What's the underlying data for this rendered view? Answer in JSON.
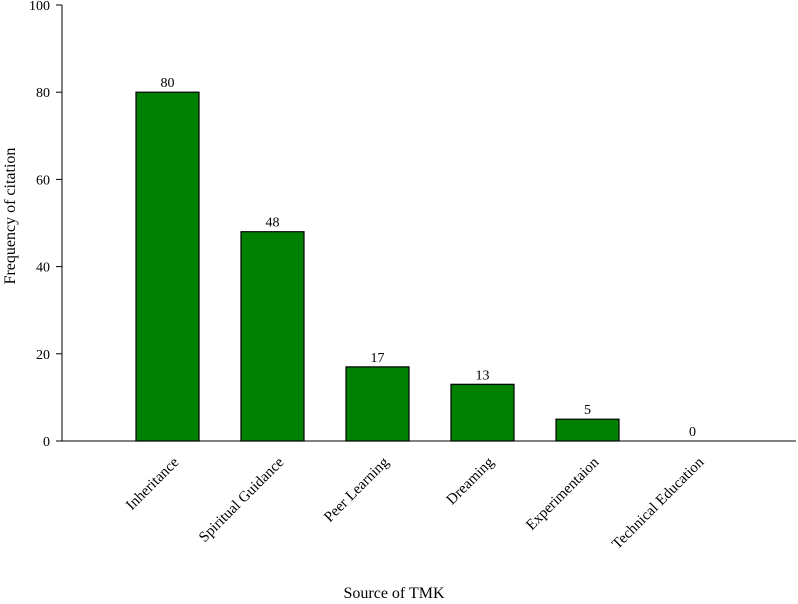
{
  "chart_data": {
    "type": "bar",
    "categories": [
      "Inheritance",
      "Spiritual Guidance",
      "Peer Learning",
      "Dreaming",
      "Experimentaion",
      "Technical Education"
    ],
    "values": [
      80,
      48,
      17,
      13,
      5,
      0
    ],
    "data_labels": [
      "80",
      "48",
      "17",
      "13",
      "5",
      "0"
    ],
    "xlabel": "Source of TMK",
    "ylabel": "Frequency of citation",
    "ylim": [
      0,
      100
    ],
    "yticks": [
      "0",
      "20",
      "40",
      "60",
      "80",
      "100"
    ],
    "grid": false,
    "legend": "none",
    "bar_color": "#008000",
    "bar_edge_color": "#000000"
  }
}
